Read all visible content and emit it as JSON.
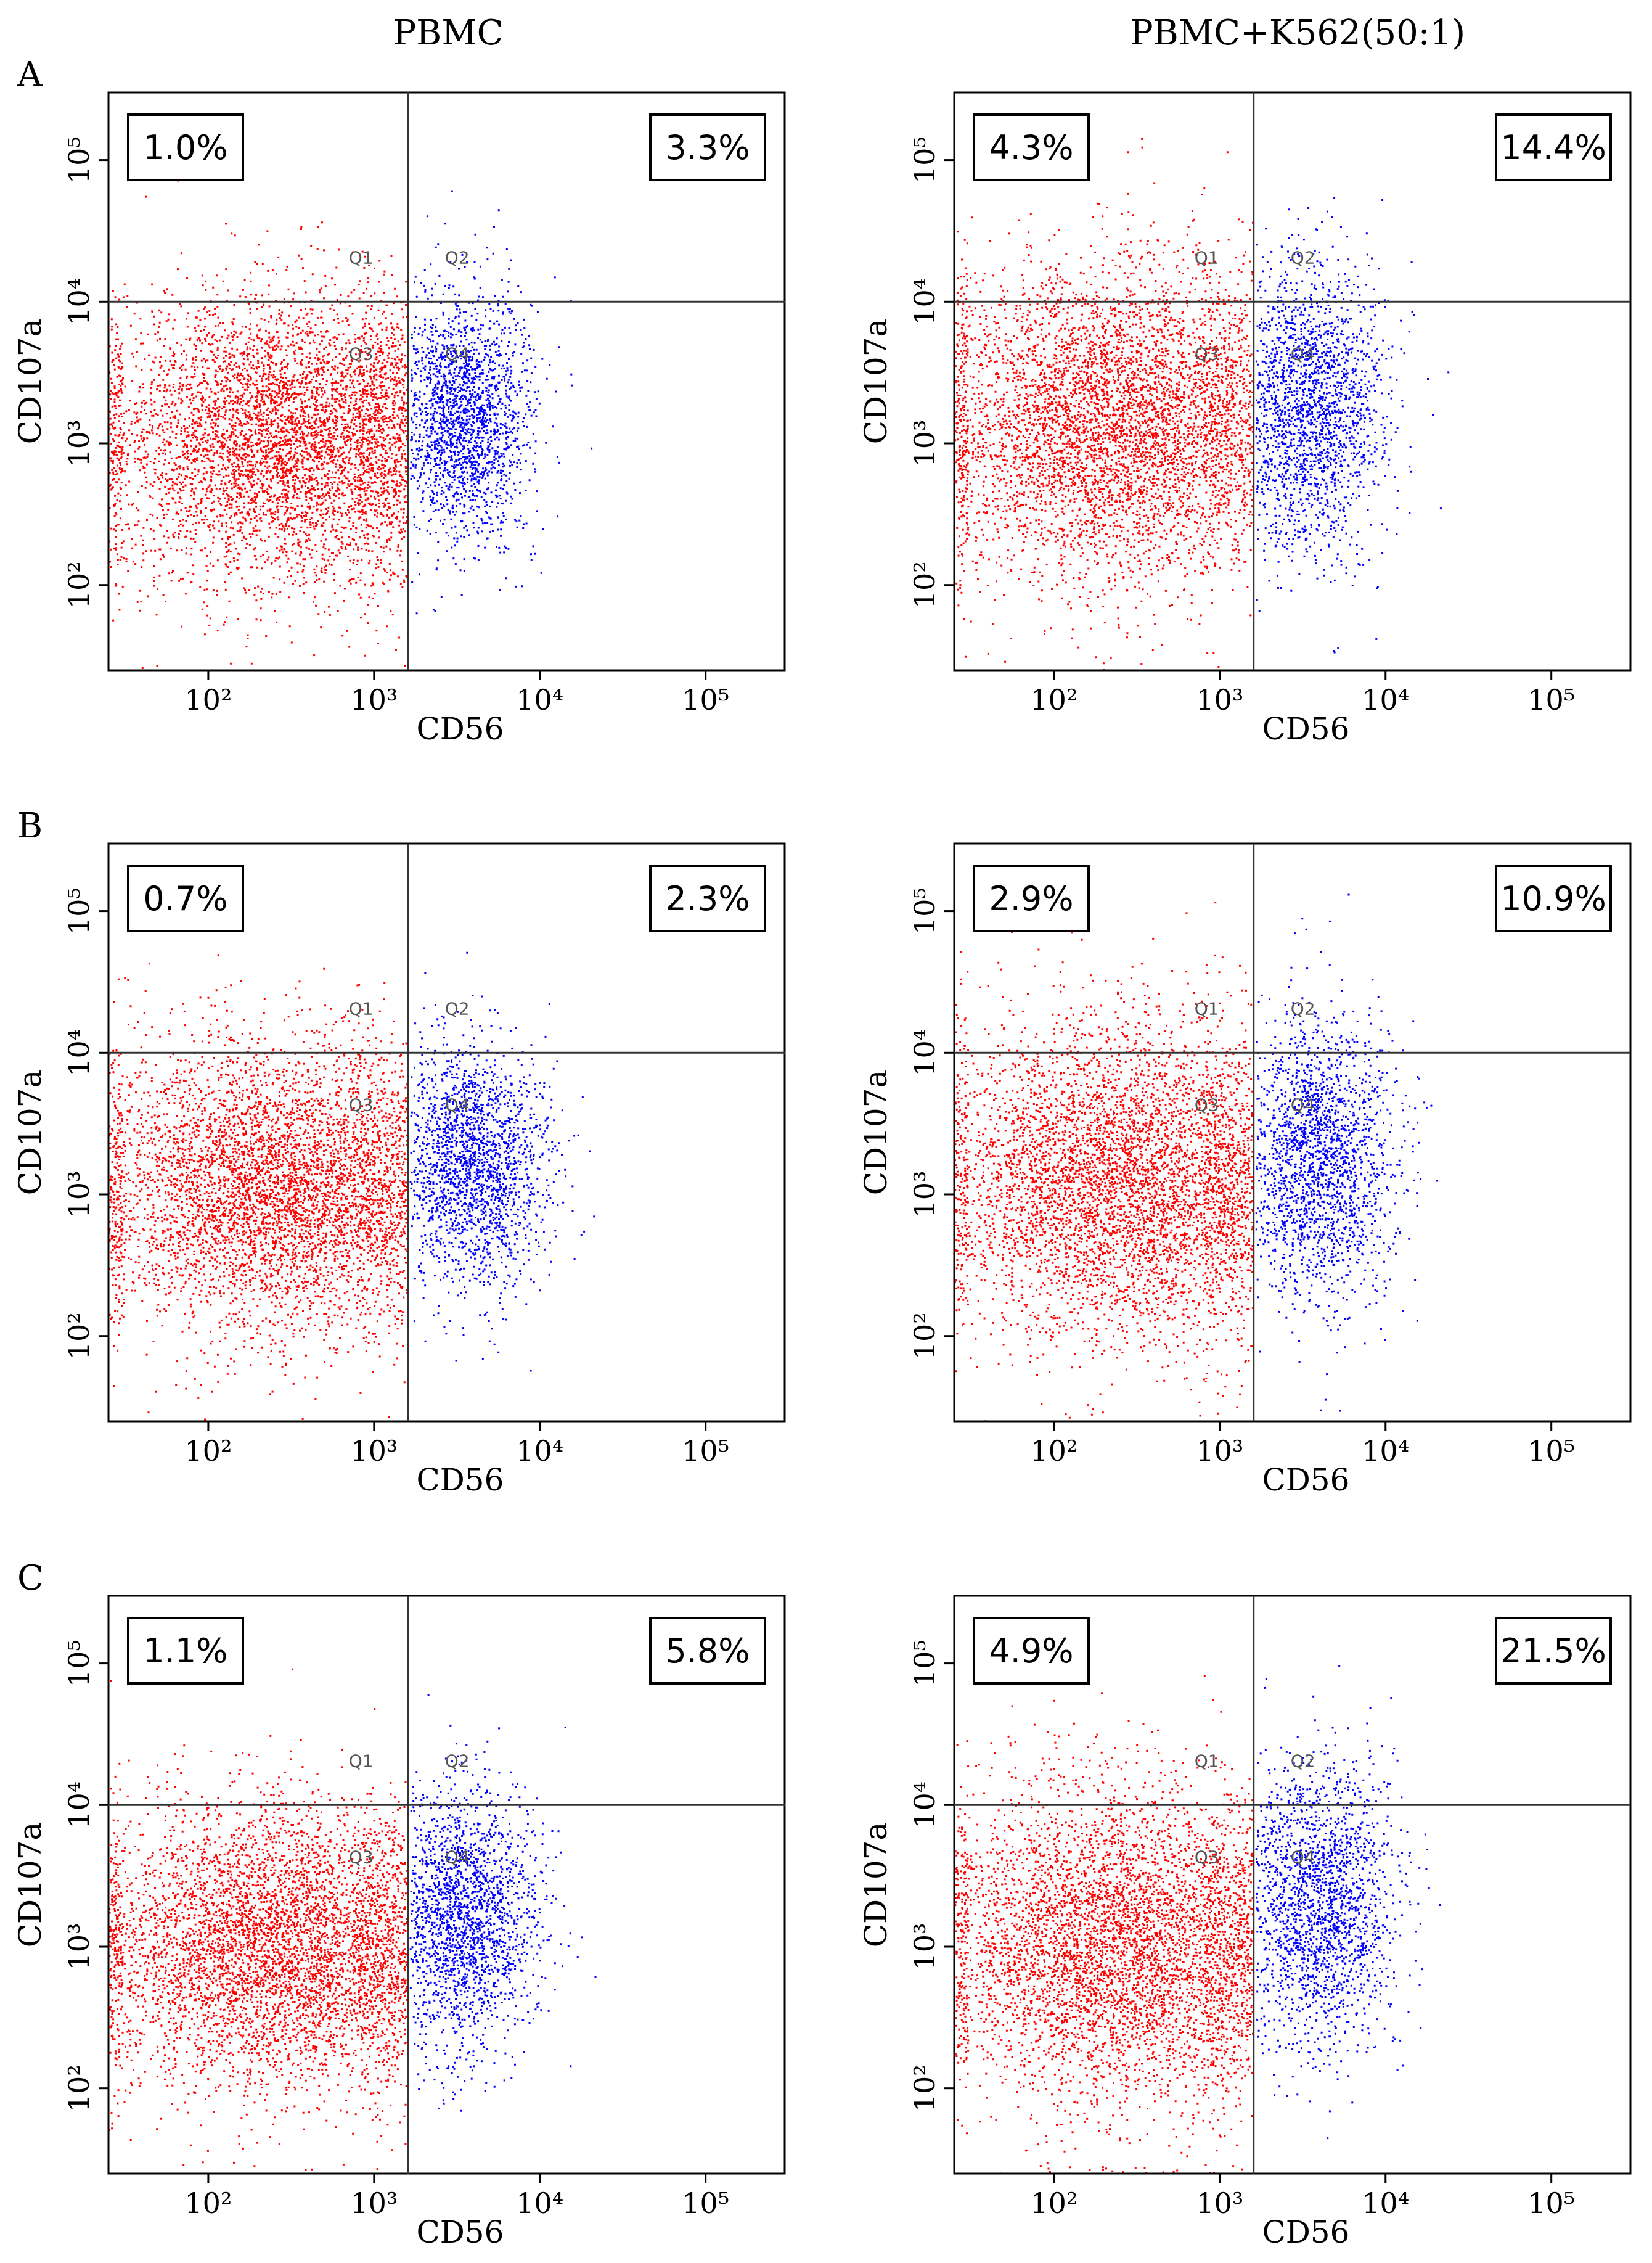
{
  "column_titles": [
    "PBMC",
    "PBMC+K562(50:1)"
  ],
  "row_labels": [
    "A",
    "B",
    "C"
  ],
  "colors": {
    "q1_q3_population": "#ff0000",
    "q2_q4_population": "#0000ff",
    "axis": "#000000",
    "gate_line": "#333333"
  },
  "chart_data": [
    {
      "type": "scatter",
      "panel": "A-PBMC",
      "row": "A",
      "column": "PBMC",
      "xlabel": "CD56",
      "ylabel": "CD107a",
      "x_scale": "log",
      "y_scale": "log",
      "xlim": [
        25,
        300000
      ],
      "ylim": [
        25,
        300000
      ],
      "x_ticks": [
        {
          "value": 100,
          "label": "10²"
        },
        {
          "value": 1000,
          "label": "10³"
        },
        {
          "value": 10000,
          "label": "10⁴"
        },
        {
          "value": 100000,
          "label": "10⁵"
        }
      ],
      "y_ticks": [
        {
          "value": 100,
          "label": "10²"
        },
        {
          "value": 1000,
          "label": "10³"
        },
        {
          "value": 10000,
          "label": "10⁴"
        },
        {
          "value": 100000,
          "label": "10⁵"
        }
      ],
      "gates": {
        "x": 1600,
        "y": 10000
      },
      "quadrant_labels": [
        "Q1",
        "Q2",
        "Q3",
        "Q4"
      ],
      "Q1_percent": "1.0%",
      "Q2_percent": "3.3%",
      "populations": [
        {
          "name": "CD56-",
          "color": "#ff0000",
          "center_log": [
            2.45,
            3.05
          ],
          "spread_log": [
            0.55,
            0.5
          ]
        },
        {
          "name": "CD56+",
          "color": "#0000ff",
          "center_log": [
            3.55,
            3.2
          ],
          "spread_log": [
            0.2,
            0.42
          ]
        }
      ]
    },
    {
      "type": "scatter",
      "panel": "A-PBMC+K562",
      "row": "A",
      "column": "PBMC+K562(50:1)",
      "xlabel": "CD56",
      "ylabel": "CD107a",
      "x_scale": "log",
      "y_scale": "log",
      "xlim": [
        25,
        300000
      ],
      "ylim": [
        25,
        300000
      ],
      "x_ticks": [
        {
          "value": 100,
          "label": "10²"
        },
        {
          "value": 1000,
          "label": "10³"
        },
        {
          "value": 10000,
          "label": "10⁴"
        },
        {
          "value": 100000,
          "label": "10⁵"
        }
      ],
      "y_ticks": [
        {
          "value": 100,
          "label": "10²"
        },
        {
          "value": 1000,
          "label": "10³"
        },
        {
          "value": 10000,
          "label": "10⁴"
        },
        {
          "value": 100000,
          "label": "10⁵"
        }
      ],
      "gates": {
        "x": 1600,
        "y": 10000
      },
      "quadrant_labels": [
        "Q1",
        "Q2",
        "Q3",
        "Q4"
      ],
      "Q1_percent": "4.3%",
      "Q2_percent": "14.4%",
      "populations": [
        {
          "name": "CD56-",
          "color": "#ff0000",
          "center_log": [
            2.35,
            3.15
          ],
          "spread_log": [
            0.55,
            0.55
          ]
        },
        {
          "name": "CD56+",
          "color": "#0000ff",
          "center_log": [
            3.55,
            3.25
          ],
          "spread_log": [
            0.22,
            0.5
          ]
        }
      ]
    },
    {
      "type": "scatter",
      "panel": "B-PBMC",
      "row": "B",
      "column": "PBMC",
      "xlabel": "CD56",
      "ylabel": "CD107a",
      "x_scale": "log",
      "y_scale": "log",
      "xlim": [
        25,
        300000
      ],
      "ylim": [
        25,
        300000
      ],
      "x_ticks": [
        {
          "value": 100,
          "label": "10²"
        },
        {
          "value": 1000,
          "label": "10³"
        },
        {
          "value": 10000,
          "label": "10⁴"
        },
        {
          "value": 100000,
          "label": "10⁵"
        }
      ],
      "y_ticks": [
        {
          "value": 100,
          "label": "10²"
        },
        {
          "value": 1000,
          "label": "10³"
        },
        {
          "value": 10000,
          "label": "10⁴"
        },
        {
          "value": 100000,
          "label": "10⁵"
        }
      ],
      "gates": {
        "x": 1600,
        "y": 10000
      },
      "quadrant_labels": [
        "Q1",
        "Q2",
        "Q3",
        "Q4"
      ],
      "Q1_percent": "0.7%",
      "Q2_percent": "2.3%",
      "populations": [
        {
          "name": "CD56-",
          "color": "#ff0000",
          "center_log": [
            2.4,
            3.05
          ],
          "spread_log": [
            0.55,
            0.5
          ]
        },
        {
          "name": "CD56+",
          "color": "#0000ff",
          "center_log": [
            3.6,
            3.2
          ],
          "spread_log": [
            0.22,
            0.42
          ]
        }
      ]
    },
    {
      "type": "scatter",
      "panel": "B-PBMC+K562",
      "row": "B",
      "column": "PBMC+K562(50:1)",
      "xlabel": "CD56",
      "ylabel": "CD107a",
      "x_scale": "log",
      "y_scale": "log",
      "xlim": [
        25,
        300000
      ],
      "ylim": [
        25,
        300000
      ],
      "x_ticks": [
        {
          "value": 100,
          "label": "10²"
        },
        {
          "value": 1000,
          "label": "10³"
        },
        {
          "value": 10000,
          "label": "10⁴"
        },
        {
          "value": 100000,
          "label": "10⁵"
        }
      ],
      "y_ticks": [
        {
          "value": 100,
          "label": "10²"
        },
        {
          "value": 1000,
          "label": "10³"
        },
        {
          "value": 10000,
          "label": "10⁴"
        },
        {
          "value": 100000,
          "label": "10⁵"
        }
      ],
      "gates": {
        "x": 1600,
        "y": 10000
      },
      "quadrant_labels": [
        "Q1",
        "Q2",
        "Q3",
        "Q4"
      ],
      "Q1_percent": "2.9%",
      "Q2_percent": "10.9%",
      "populations": [
        {
          "name": "CD56-",
          "color": "#ff0000",
          "center_log": [
            2.4,
            3.1
          ],
          "spread_log": [
            0.55,
            0.55
          ]
        },
        {
          "name": "CD56+",
          "color": "#0000ff",
          "center_log": [
            3.6,
            3.25
          ],
          "spread_log": [
            0.22,
            0.5
          ]
        }
      ]
    },
    {
      "type": "scatter",
      "panel": "C-PBMC",
      "row": "C",
      "column": "PBMC",
      "xlabel": "CD56",
      "ylabel": "CD107a",
      "x_scale": "log",
      "y_scale": "log",
      "xlim": [
        25,
        300000
      ],
      "ylim": [
        25,
        300000
      ],
      "x_ticks": [
        {
          "value": 100,
          "label": "10²"
        },
        {
          "value": 1000,
          "label": "10³"
        },
        {
          "value": 10000,
          "label": "10⁴"
        },
        {
          "value": 100000,
          "label": "10⁵"
        }
      ],
      "y_ticks": [
        {
          "value": 100,
          "label": "10²"
        },
        {
          "value": 1000,
          "label": "10³"
        },
        {
          "value": 10000,
          "label": "10⁴"
        },
        {
          "value": 100000,
          "label": "10⁵"
        }
      ],
      "gates": {
        "x": 1600,
        "y": 10000
      },
      "quadrant_labels": [
        "Q1",
        "Q2",
        "Q3",
        "Q4"
      ],
      "Q1_percent": "1.1%",
      "Q2_percent": "5.8%",
      "populations": [
        {
          "name": "CD56-",
          "color": "#ff0000",
          "center_log": [
            2.4,
            3.0
          ],
          "spread_log": [
            0.55,
            0.5
          ]
        },
        {
          "name": "CD56+",
          "color": "#0000ff",
          "center_log": [
            3.55,
            3.2
          ],
          "spread_log": [
            0.22,
            0.45
          ]
        }
      ]
    },
    {
      "type": "scatter",
      "panel": "C-PBMC+K562",
      "row": "C",
      "column": "PBMC+K562(50:1)",
      "xlabel": "CD56",
      "ylabel": "CD107a",
      "x_scale": "log",
      "y_scale": "log",
      "xlim": [
        25,
        300000
      ],
      "ylim": [
        25,
        300000
      ],
      "x_ticks": [
        {
          "value": 100,
          "label": "10²"
        },
        {
          "value": 1000,
          "label": "10³"
        },
        {
          "value": 10000,
          "label": "10⁴"
        },
        {
          "value": 100000,
          "label": "10⁵"
        }
      ],
      "y_ticks": [
        {
          "value": 100,
          "label": "10²"
        },
        {
          "value": 1000,
          "label": "10³"
        },
        {
          "value": 10000,
          "label": "10⁴"
        },
        {
          "value": 100000,
          "label": "10⁵"
        }
      ],
      "gates": {
        "x": 1600,
        "y": 10000
      },
      "quadrant_labels": [
        "Q1",
        "Q2",
        "Q3",
        "Q4"
      ],
      "Q1_percent": "4.9%",
      "Q2_percent": "21.5%",
      "populations": [
        {
          "name": "CD56-",
          "color": "#ff0000",
          "center_log": [
            2.4,
            3.0
          ],
          "spread_log": [
            0.55,
            0.55
          ]
        },
        {
          "name": "CD56+",
          "color": "#0000ff",
          "center_log": [
            3.6,
            3.3
          ],
          "spread_log": [
            0.22,
            0.5
          ]
        }
      ]
    }
  ]
}
